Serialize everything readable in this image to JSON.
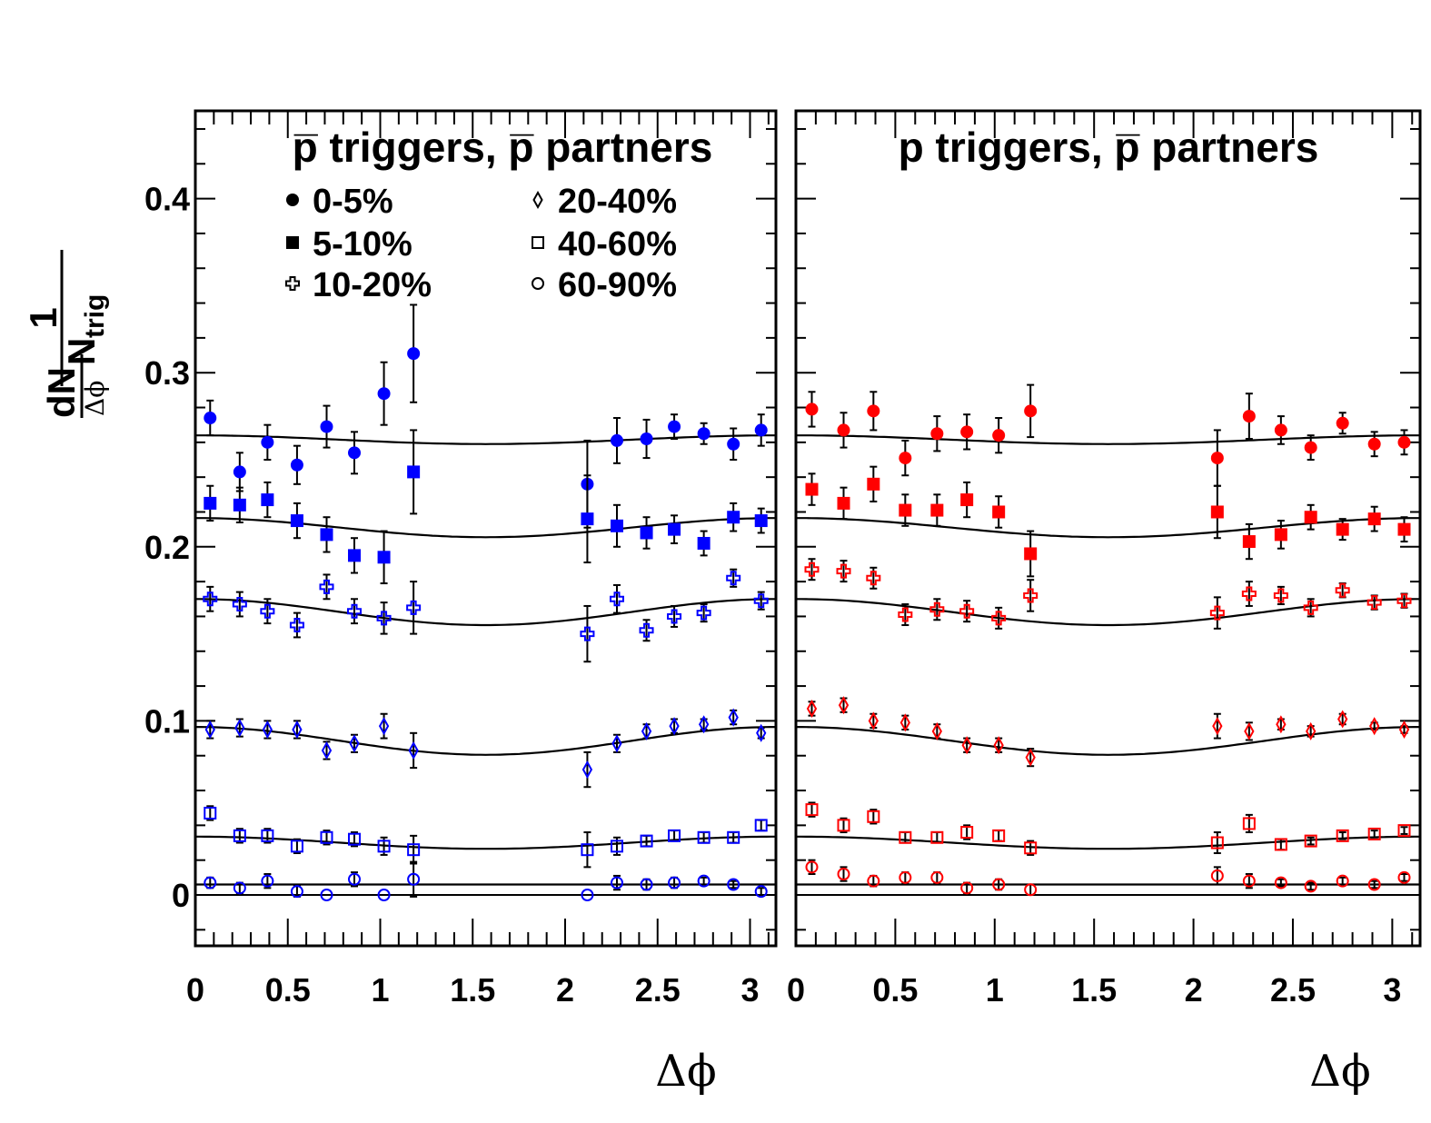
{
  "chart_data": [
    {
      "type": "scatter",
      "title": "p̅ triggers, p̅ partners",
      "xlabel": "Δϕ",
      "ylabel": "1/N_trig dN/Δϕ",
      "ylabel_parts": {
        "num": "1",
        "den": "N",
        "den_sub": "trig",
        "frac_num": "dN",
        "frac_den": "Δϕ"
      },
      "xlim": [
        0,
        3.14
      ],
      "ylim": [
        -0.03,
        0.45
      ],
      "xticks": [
        "0",
        "0.5",
        "1",
        "1.5",
        "2",
        "2.5",
        "3"
      ],
      "yticks": [
        "0",
        "0.1",
        "0.2",
        "0.3",
        "0.4"
      ],
      "marker_color": "#0000ff",
      "legend_placement": "top",
      "x": [
        0.08,
        0.24,
        0.39,
        0.55,
        0.71,
        0.86,
        1.02,
        1.18,
        2.12,
        2.28,
        2.44,
        2.59,
        2.75,
        2.91,
        3.06
      ],
      "series": [
        {
          "name": "0-5%",
          "marker": "circle-filled",
          "values": [
            0.274,
            0.243,
            0.26,
            0.247,
            0.269,
            0.254,
            0.288,
            0.311,
            0.236,
            0.261,
            0.262,
            0.269,
            0.265,
            0.259,
            0.267
          ],
          "errors": [
            0.01,
            0.011,
            0.01,
            0.011,
            0.012,
            0.012,
            0.018,
            0.028,
            0.025,
            0.013,
            0.011,
            0.007,
            0.006,
            0.009,
            0.009
          ]
        },
        {
          "name": "5-10%",
          "marker": "square-filled",
          "values": [
            0.225,
            0.224,
            0.227,
            0.215,
            0.207,
            0.195,
            0.194,
            0.243,
            0.216,
            0.212,
            0.208,
            0.21,
            0.202,
            0.217,
            0.215
          ],
          "errors": [
            0.01,
            0.01,
            0.01,
            0.01,
            0.01,
            0.01,
            0.015,
            0.024,
            0.025,
            0.012,
            0.009,
            0.008,
            0.007,
            0.008,
            0.007
          ]
        },
        {
          "name": "10-20%",
          "marker": "cross-open",
          "values": [
            0.17,
            0.167,
            0.163,
            0.155,
            0.177,
            0.163,
            0.159,
            0.165,
            0.15,
            0.17,
            0.152,
            0.16,
            0.162,
            0.182,
            0.169
          ],
          "errors": [
            0.007,
            0.007,
            0.007,
            0.007,
            0.007,
            0.007,
            0.009,
            0.015,
            0.016,
            0.008,
            0.006,
            0.006,
            0.005,
            0.005,
            0.005
          ]
        },
        {
          "name": "20-40%",
          "marker": "diamond-open",
          "values": [
            0.095,
            0.096,
            0.095,
            0.095,
            0.083,
            0.087,
            0.097,
            0.083,
            0.072,
            0.087,
            0.094,
            0.097,
            0.098,
            0.102,
            0.093
          ],
          "errors": [
            0.005,
            0.005,
            0.005,
            0.005,
            0.005,
            0.005,
            0.007,
            0.01,
            0.01,
            0.005,
            0.004,
            0.004,
            0.003,
            0.004,
            0.003
          ]
        },
        {
          "name": "40-60%",
          "marker": "square-open",
          "values": [
            0.047,
            0.034,
            0.034,
            0.028,
            0.033,
            0.032,
            0.028,
            0.026,
            0.026,
            0.028,
            0.031,
            0.034,
            0.033,
            0.033,
            0.04
          ],
          "errors": [
            0.004,
            0.004,
            0.004,
            0.004,
            0.004,
            0.004,
            0.005,
            0.008,
            0.01,
            0.005,
            0.003,
            0.003,
            0.003,
            0.003,
            0.003
          ]
        },
        {
          "name": "60-90%",
          "marker": "circle-open",
          "values": [
            0.007,
            0.004,
            0.008,
            0.002,
            0.0,
            0.009,
            0.0,
            0.009,
            0.0,
            0.007,
            0.006,
            0.007,
            0.008,
            0.006,
            0.002
          ],
          "errors": [
            0.003,
            0.003,
            0.004,
            0.003,
            0.0,
            0.004,
            0.0,
            0.01,
            0.0,
            0.004,
            0.003,
            0.003,
            0.002,
            0.002,
            0.002
          ]
        }
      ],
      "fit_curves": [
        {
          "base": 0.264,
          "amplitude": 0.0025
        },
        {
          "base": 0.2165,
          "amplitude": 0.0055
        },
        {
          "base": 0.17,
          "amplitude": 0.0075
        },
        {
          "base": 0.0965,
          "amplitude": 0.008
        },
        {
          "base": 0.0335,
          "amplitude": 0.0035
        },
        {
          "base": 0.006,
          "amplitude": 0.0
        }
      ]
    },
    {
      "type": "scatter",
      "title": "p triggers, p̅ partners",
      "xlabel": "Δϕ",
      "xlim": [
        0,
        3.14
      ],
      "ylim": [
        -0.03,
        0.45
      ],
      "xticks": [
        "0",
        "0.5",
        "1",
        "1.5",
        "2",
        "2.5",
        "3"
      ],
      "marker_color": "#ff0000",
      "x": [
        0.08,
        0.24,
        0.39,
        0.55,
        0.71,
        0.86,
        1.02,
        1.18,
        2.12,
        2.28,
        2.44,
        2.59,
        2.75,
        2.91,
        3.06
      ],
      "series": [
        {
          "label": "0-5%",
          "marker": "circle-filled",
          "values": [
            0.279,
            0.267,
            0.278,
            0.251,
            0.265,
            0.266,
            0.264,
            0.278,
            0.251,
            0.275,
            0.267,
            0.257,
            0.271,
            0.259,
            0.26
          ],
          "errors": [
            0.01,
            0.01,
            0.011,
            0.01,
            0.01,
            0.01,
            0.01,
            0.015,
            0.016,
            0.013,
            0.008,
            0.007,
            0.006,
            0.007,
            0.007
          ]
        },
        {
          "label": "5-10%",
          "marker": "square-filled",
          "values": [
            0.233,
            0.225,
            0.236,
            0.221,
            0.221,
            0.227,
            0.22,
            0.196,
            0.22,
            0.203,
            0.207,
            0.217,
            0.21,
            0.216,
            0.21
          ],
          "errors": [
            0.009,
            0.009,
            0.01,
            0.009,
            0.009,
            0.01,
            0.009,
            0.013,
            0.015,
            0.01,
            0.008,
            0.007,
            0.006,
            0.007,
            0.007
          ]
        },
        {
          "label": "10-20%",
          "marker": "cross-open",
          "values": [
            0.187,
            0.186,
            0.182,
            0.161,
            0.164,
            0.163,
            0.159,
            0.172,
            0.162,
            0.173,
            0.172,
            0.165,
            0.175,
            0.168,
            0.169
          ],
          "errors": [
            0.006,
            0.006,
            0.006,
            0.006,
            0.006,
            0.006,
            0.006,
            0.009,
            0.009,
            0.007,
            0.005,
            0.005,
            0.004,
            0.004,
            0.004
          ]
        },
        {
          "label": "20-40%",
          "marker": "diamond-open",
          "values": [
            0.107,
            0.109,
            0.1,
            0.099,
            0.094,
            0.086,
            0.086,
            0.079,
            0.097,
            0.094,
            0.098,
            0.094,
            0.101,
            0.097,
            0.095
          ],
          "errors": [
            0.004,
            0.004,
            0.004,
            0.004,
            0.004,
            0.004,
            0.004,
            0.005,
            0.007,
            0.005,
            0.003,
            0.003,
            0.003,
            0.002,
            0.002
          ]
        },
        {
          "label": "40-60%",
          "marker": "square-open",
          "values": [
            0.049,
            0.04,
            0.045,
            0.033,
            0.033,
            0.036,
            0.034,
            0.027,
            0.03,
            0.041,
            0.029,
            0.031,
            0.034,
            0.035,
            0.037
          ],
          "errors": [
            0.004,
            0.004,
            0.004,
            0.003,
            0.003,
            0.004,
            0.003,
            0.004,
            0.006,
            0.005,
            0.003,
            0.002,
            0.002,
            0.002,
            0.002
          ]
        },
        {
          "label": "60-90%",
          "marker": "circle-open",
          "values": [
            0.016,
            0.012,
            0.008,
            0.01,
            0.01,
            0.004,
            0.006,
            0.003,
            0.011,
            0.008,
            0.007,
            0.005,
            0.008,
            0.006,
            0.01
          ],
          "errors": [
            0.004,
            0.004,
            0.003,
            0.003,
            0.003,
            0.003,
            0.003,
            0.003,
            0.005,
            0.004,
            0.002,
            0.002,
            0.002,
            0.002,
            0.002
          ]
        }
      ],
      "fit_curves": [
        {
          "base": 0.264,
          "amplitude": 0.0025
        },
        {
          "base": 0.2165,
          "amplitude": 0.0055
        },
        {
          "base": 0.17,
          "amplitude": 0.0075
        },
        {
          "base": 0.0965,
          "amplitude": 0.008
        },
        {
          "base": 0.0335,
          "amplitude": 0.0035
        },
        {
          "base": 0.006,
          "amplitude": 0.0
        }
      ]
    }
  ]
}
